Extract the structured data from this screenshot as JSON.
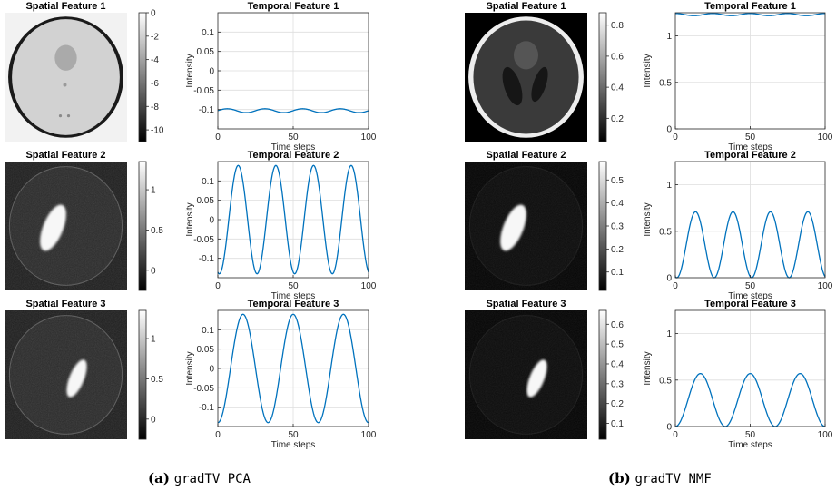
{
  "captions": [
    {
      "label": "(a)",
      "text": "gradTV_PCA"
    },
    {
      "label": "(b)",
      "text": "gradTV_NMF"
    }
  ],
  "chart_data": [
    {
      "panel": "a",
      "spatial": [
        {
          "title": "Spatial Feature 1",
          "colorbar_ticks": [
            "0",
            "-2",
            "-4",
            "-6",
            "-8",
            "-10"
          ],
          "colorbar_range": [
            -11,
            0
          ],
          "contrast": "pca-dark-rim"
        },
        {
          "title": "Spatial Feature 2",
          "colorbar_ticks": [
            "1",
            "0.5",
            "0"
          ],
          "colorbar_range": [
            -0.25,
            1.35
          ],
          "contrast": "left-blob"
        },
        {
          "title": "Spatial Feature 3",
          "colorbar_ticks": [
            "1",
            "0.5",
            "0"
          ],
          "colorbar_range": [
            -0.25,
            1.35
          ],
          "contrast": "right-blob"
        }
      ],
      "temporal": [
        {
          "type": "line",
          "title": "Temporal Feature 1",
          "xlabel": "Time steps",
          "ylabel": "Intensity",
          "xlim": [
            0,
            100
          ],
          "ylim": [
            -0.15,
            0.15
          ],
          "yticks": [
            0.1,
            0.05,
            0,
            -0.05,
            -0.1
          ],
          "xticks": [
            0,
            50,
            100
          ],
          "grid": true,
          "series": [
            {
              "kind": "sine",
              "offset": -0.103,
              "amplitude": 0.005,
              "period": 25,
              "phase_deg": 0
            }
          ]
        },
        {
          "type": "line",
          "title": "Temporal Feature 2",
          "xlabel": "Time steps",
          "ylabel": "Intensity",
          "xlim": [
            0,
            100
          ],
          "ylim": [
            -0.15,
            0.15
          ],
          "yticks": [
            0.1,
            0.05,
            0,
            -0.05,
            -0.1
          ],
          "xticks": [
            0,
            50,
            100
          ],
          "grid": true,
          "series": [
            {
              "kind": "cosine",
              "offset": 0,
              "amplitude": 0.14,
              "period": 25,
              "peak_at": 13.5
            }
          ]
        },
        {
          "type": "line",
          "title": "Temporal Feature 3",
          "xlabel": "Time steps",
          "ylabel": "Intensity",
          "xlim": [
            0,
            100
          ],
          "ylim": [
            -0.15,
            0.15
          ],
          "yticks": [
            0.1,
            0.05,
            0,
            -0.05,
            -0.1
          ],
          "xticks": [
            0,
            50,
            100
          ],
          "grid": true,
          "series": [
            {
              "kind": "cosine",
              "offset": 0,
              "amplitude": 0.14,
              "period": 33.3,
              "peak_at": 16.7
            }
          ]
        }
      ]
    },
    {
      "panel": "b",
      "spatial": [
        {
          "title": "Spatial Feature 1",
          "colorbar_ticks": [
            "0.8",
            "0.6",
            "0.4",
            "0.2"
          ],
          "colorbar_range": [
            0.05,
            0.88
          ],
          "contrast": "nmf-phantom"
        },
        {
          "title": "Spatial Feature 2",
          "colorbar_ticks": [
            "0.5",
            "0.4",
            "0.3",
            "0.2",
            "0.1"
          ],
          "colorbar_range": [
            0.02,
            0.58
          ],
          "contrast": "left-blob"
        },
        {
          "title": "Spatial Feature 3",
          "colorbar_ticks": [
            "0.6",
            "0.5",
            "0.4",
            "0.3",
            "0.2",
            "0.1"
          ],
          "colorbar_range": [
            0.02,
            0.67
          ],
          "contrast": "right-blob"
        }
      ],
      "temporal": [
        {
          "type": "line",
          "title": "Temporal Feature 1",
          "xlabel": "Time steps",
          "ylabel": "Intensity",
          "xlim": [
            0,
            100
          ],
          "ylim": [
            0,
            1.25
          ],
          "yticks": [
            1,
            0.5,
            0
          ],
          "xticks": [
            0,
            50,
            100
          ],
          "grid": true,
          "series": [
            {
              "kind": "sine",
              "offset": 1.23,
              "amplitude": 0.012,
              "period": 25,
              "phase_deg": 90
            }
          ]
        },
        {
          "type": "line",
          "title": "Temporal Feature 2",
          "xlabel": "Time steps",
          "ylabel": "Intensity",
          "xlim": [
            0,
            100
          ],
          "ylim": [
            0,
            1.25
          ],
          "yticks": [
            1,
            0.5,
            0
          ],
          "xticks": [
            0,
            50,
            100
          ],
          "grid": true,
          "series": [
            {
              "kind": "cosine",
              "offset": 0.355,
              "amplitude": 0.355,
              "period": 25,
              "peak_at": 13.5
            }
          ]
        },
        {
          "type": "line",
          "title": "Temporal Feature 3",
          "xlabel": "Time steps",
          "ylabel": "Intensity",
          "xlim": [
            0,
            100
          ],
          "ylim": [
            0,
            1.25
          ],
          "yticks": [
            1,
            0.5,
            0
          ],
          "xticks": [
            0,
            50,
            100
          ],
          "grid": true,
          "series": [
            {
              "kind": "cosine",
              "offset": 0.285,
              "amplitude": 0.285,
              "period": 33.3,
              "peak_at": 16.7
            }
          ]
        }
      ]
    }
  ]
}
